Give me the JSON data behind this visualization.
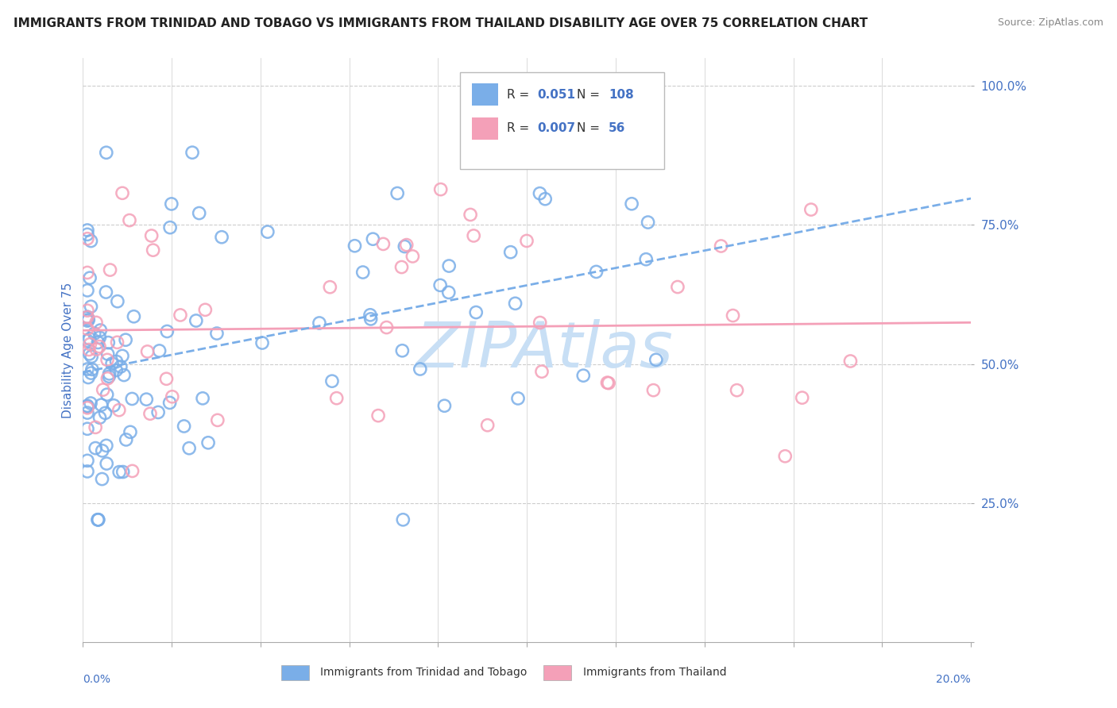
{
  "title": "IMMIGRANTS FROM TRINIDAD AND TOBAGO VS IMMIGRANTS FROM THAILAND DISABILITY AGE OVER 75 CORRELATION CHART",
  "source": "Source: ZipAtlas.com",
  "ylabel": "Disability Age Over 75",
  "yticks": [
    0.0,
    0.25,
    0.5,
    0.75,
    1.0
  ],
  "ytick_labels": [
    "",
    "25.0%",
    "50.0%",
    "75.0%",
    "100.0%"
  ],
  "xlim": [
    0.0,
    0.2
  ],
  "ylim": [
    0.0,
    1.05
  ],
  "blue_R": 0.051,
  "blue_N": 108,
  "pink_R": 0.007,
  "pink_N": 56,
  "blue_color": "#7aaee8",
  "pink_color": "#f4a0b8",
  "blue_label": "Immigrants from Trinidad and Tobago",
  "pink_label": "Immigrants from Thailand",
  "watermark": "ZIPAtlas",
  "watermark_color": "#c8dff5",
  "background_color": "#ffffff",
  "grid_color": "#cccccc",
  "title_color": "#222222",
  "axis_label_color": "#4472c4",
  "legend_color": "#4472c4"
}
